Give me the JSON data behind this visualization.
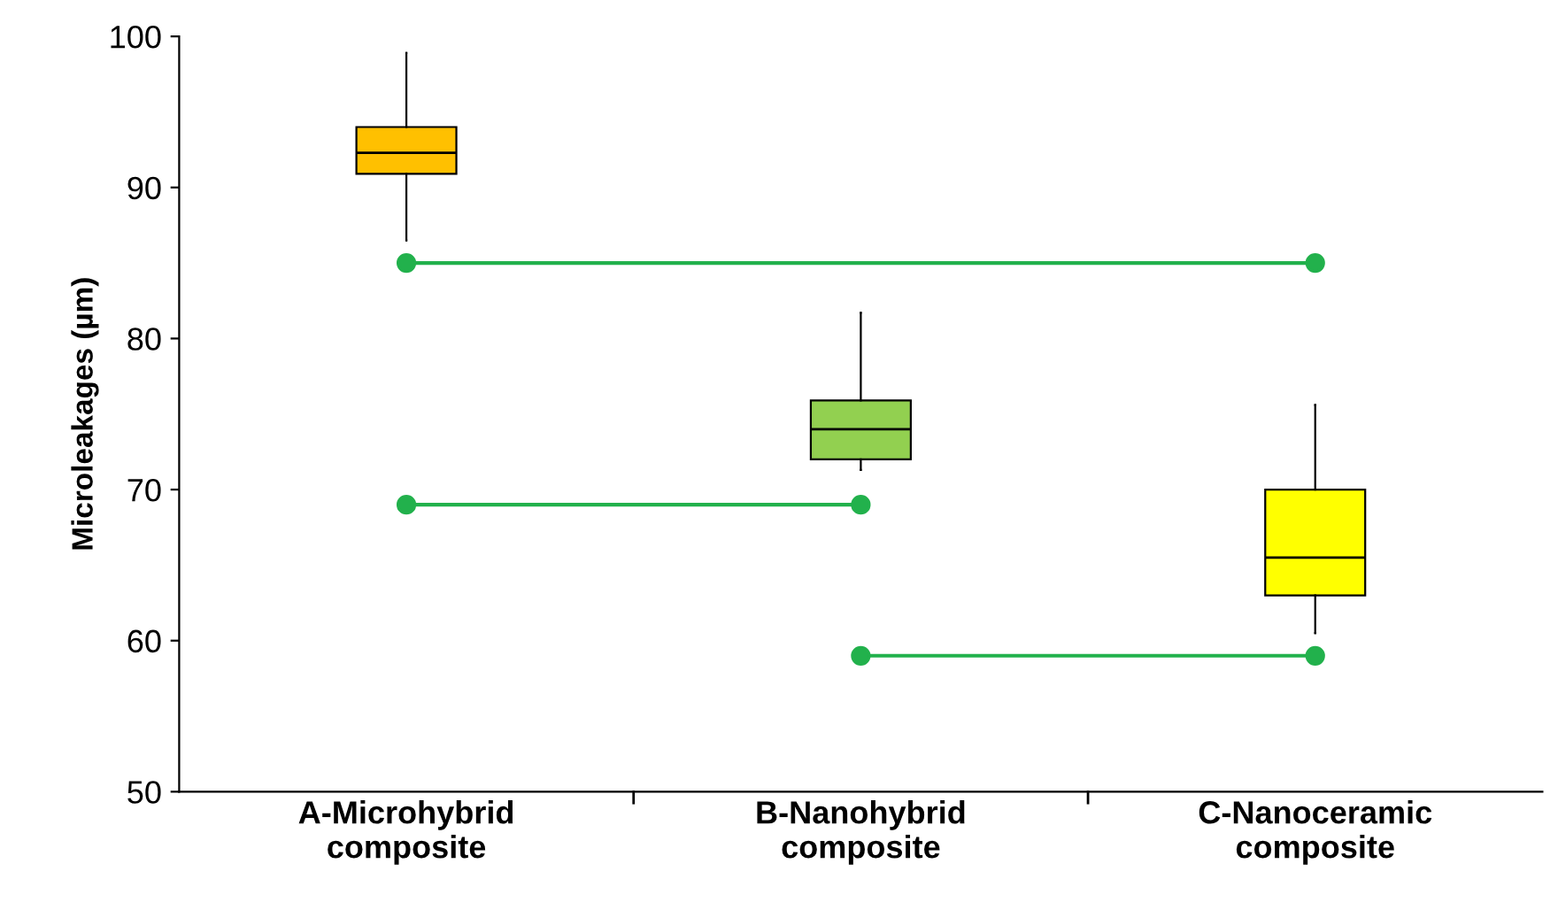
{
  "chart_data": {
    "type": "box",
    "ylabel": "Microleakages (µm)",
    "categories": [
      "A-Microhybrid\ncomposite",
      "B-Nanohybrid\ncomposite",
      "C-Nanoceramic\ncomposite"
    ],
    "colors": [
      "#ffc000",
      "#92d050",
      "#ffff00"
    ],
    "boxes": [
      {
        "low": 86.5,
        "q1": 90.9,
        "median": 92.3,
        "q3": 94.0,
        "high": 98.9
      },
      {
        "low": 71.3,
        "q1": 72.0,
        "median": 74.0,
        "q3": 75.9,
        "high": 81.7
      },
      {
        "low": 60.5,
        "q1": 63.0,
        "median": 65.5,
        "q3": 70.0,
        "high": 75.6
      }
    ],
    "series": [
      {
        "type": "line",
        "color": "#22b14c",
        "marker": "circle",
        "x": [
          "A-Microhybrid\ncomposite",
          "C-Nanoceramic\ncomposite"
        ],
        "values": [
          85,
          85
        ]
      },
      {
        "type": "line",
        "color": "#22b14c",
        "marker": "circle",
        "x": [
          "A-Microhybrid\ncomposite",
          "B-Nanohybrid\ncomposite"
        ],
        "values": [
          69,
          69
        ]
      },
      {
        "type": "line",
        "color": "#22b14c",
        "marker": "circle",
        "x": [
          "B-Nanohybrid\ncomposite",
          "C-Nanoceramic\ncomposite"
        ],
        "values": [
          59,
          59
        ]
      }
    ],
    "ylim": [
      50,
      100
    ],
    "yticks": [
      50,
      60,
      70,
      80,
      90,
      100
    ],
    "grid": false
  }
}
